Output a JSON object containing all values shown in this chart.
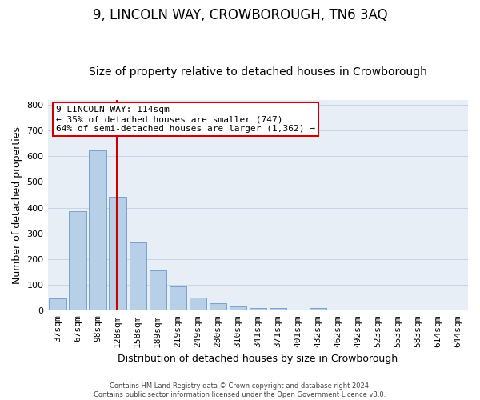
{
  "title": "9, LINCOLN WAY, CROWBOROUGH, TN6 3AQ",
  "subtitle": "Size of property relative to detached houses in Crowborough",
  "xlabel": "Distribution of detached houses by size in Crowborough",
  "ylabel": "Number of detached properties",
  "bar_labels": [
    "37sqm",
    "67sqm",
    "98sqm",
    "128sqm",
    "158sqm",
    "189sqm",
    "219sqm",
    "249sqm",
    "280sqm",
    "310sqm",
    "341sqm",
    "371sqm",
    "401sqm",
    "432sqm",
    "462sqm",
    "492sqm",
    "523sqm",
    "553sqm",
    "583sqm",
    "614sqm",
    "644sqm"
  ],
  "bar_values": [
    47,
    385,
    622,
    443,
    265,
    155,
    95,
    50,
    30,
    15,
    10,
    10,
    0,
    10,
    0,
    0,
    0,
    5,
    0,
    0,
    0
  ],
  "bar_color": "#b8cfe8",
  "bar_edgecolor": "#6699cc",
  "vline_color": "#cc0000",
  "ylim": [
    0,
    820
  ],
  "yticks": [
    0,
    100,
    200,
    300,
    400,
    500,
    600,
    700,
    800
  ],
  "annotation_text": "9 LINCOLN WAY: 114sqm\n← 35% of detached houses are smaller (747)\n64% of semi-detached houses are larger (1,362) →",
  "annotation_box_edgecolor": "#cc0000",
  "footer_line1": "Contains HM Land Registry data © Crown copyright and database right 2024.",
  "footer_line2": "Contains public sector information licensed under the Open Government Licence v3.0.",
  "background_color": "#ffffff",
  "plot_bg_color": "#e8eef5",
  "grid_color": "#c8d4e4",
  "title_fontsize": 12,
  "subtitle_fontsize": 10,
  "xlabel_fontsize": 9,
  "ylabel_fontsize": 9,
  "tick_fontsize": 8,
  "annot_fontsize": 8,
  "footer_fontsize": 6
}
